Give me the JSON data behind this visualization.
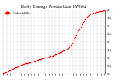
{
  "title": "Daily Energy Production kWh/d",
  "line_color": "#ff0000",
  "bg_color": "#ffffff",
  "grid_color": "#cccccc",
  "x_values": [
    1,
    2,
    3,
    4,
    5,
    6,
    7,
    8,
    9,
    10,
    11,
    12,
    13,
    14,
    15,
    16,
    17,
    18,
    19,
    20,
    21,
    22,
    23,
    24,
    25,
    26,
    27,
    28,
    29,
    30,
    31,
    32,
    33,
    34,
    35,
    36,
    37,
    38,
    39,
    40,
    41,
    42,
    43,
    44,
    45,
    46,
    47,
    48,
    49,
    50,
    51,
    52,
    53,
    54,
    55,
    56,
    57,
    58,
    59,
    60,
    61,
    62,
    63,
    64,
    65,
    66,
    67,
    68,
    69,
    70,
    71,
    72,
    73,
    74,
    75,
    76,
    77,
    78,
    79,
    80,
    81,
    82,
    83,
    84,
    85,
    86,
    87,
    88,
    89,
    90,
    91,
    92,
    93,
    94,
    95,
    96,
    97,
    98,
    99,
    100,
    101,
    102,
    103,
    104,
    105,
    106,
    107,
    108,
    109,
    110,
    111,
    112,
    113,
    114,
    115,
    116,
    117,
    118,
    119,
    120
  ],
  "y_values": [
    0.05,
    0.06,
    0.08,
    0.1,
    0.12,
    0.15,
    0.18,
    0.2,
    0.22,
    0.25,
    0.28,
    0.3,
    0.33,
    0.35,
    0.38,
    0.4,
    0.42,
    0.45,
    0.47,
    0.5,
    0.52,
    0.55,
    0.57,
    0.6,
    0.62,
    0.63,
    0.64,
    0.65,
    0.66,
    0.67,
    0.68,
    0.7,
    0.72,
    0.73,
    0.75,
    0.77,
    0.78,
    0.8,
    0.82,
    0.83,
    0.85,
    0.87,
    0.88,
    0.9,
    0.92,
    0.93,
    0.95,
    0.97,
    0.98,
    1.0,
    1.0,
    1.0,
    1.0,
    1.02,
    1.05,
    1.08,
    1.1,
    1.12,
    1.12,
    1.13,
    1.15,
    1.18,
    1.2,
    1.23,
    1.25,
    1.28,
    1.3,
    1.33,
    1.35,
    1.38,
    1.4,
    1.43,
    1.45,
    1.48,
    1.5,
    1.55,
    1.6,
    1.65,
    1.7,
    1.75,
    1.8,
    1.9,
    2.0,
    2.1,
    2.2,
    2.3,
    2.4,
    2.5,
    2.6,
    2.7,
    2.8,
    2.9,
    3.0,
    3.1,
    3.2,
    3.3,
    3.4,
    3.45,
    3.5,
    3.55,
    3.6,
    3.65,
    3.7,
    3.72,
    3.74,
    3.76,
    3.78,
    3.8,
    3.82,
    3.84,
    3.85,
    3.86,
    3.87,
    3.88,
    3.89,
    3.9,
    3.91,
    3.92,
    3.93,
    3.94
  ],
  "ylim": [
    0,
    4
  ],
  "yticks": [
    0,
    0.5,
    1.0,
    1.5,
    2.0,
    2.5,
    3.0,
    3.5,
    4.0
  ],
  "ytick_labels": [
    "0",
    "0.5",
    "1",
    "1.5",
    "2",
    "2.5",
    "3",
    "3.5",
    "4"
  ],
  "marker_size": 1.0,
  "title_fontsize": 3.8,
  "tick_fontsize": 3.0,
  "legend_label": "Solar kWh"
}
